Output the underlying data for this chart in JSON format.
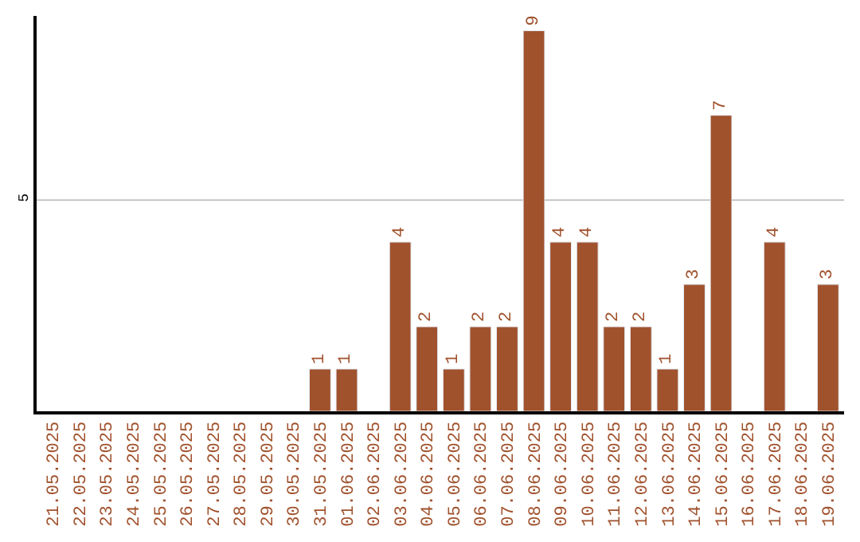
{
  "chart_data": {
    "type": "bar",
    "categories": [
      "21.05.2025",
      "22.05.2025",
      "23.05.2025",
      "24.05.2025",
      "25.05.2025",
      "26.05.2025",
      "27.05.2025",
      "28.05.2025",
      "29.05.2025",
      "30.05.2025",
      "31.05.2025",
      "01.06.2025",
      "02.06.2025",
      "03.06.2025",
      "04.06.2025",
      "05.06.2025",
      "06.06.2025",
      "07.06.2025",
      "08.06.2025",
      "09.06.2025",
      "10.06.2025",
      "11.06.2025",
      "12.06.2025",
      "13.06.2025",
      "14.06.2025",
      "15.06.2025",
      "16.06.2025",
      "17.06.2025",
      "18.06.2025",
      "19.06.2025"
    ],
    "values": [
      null,
      null,
      null,
      null,
      null,
      null,
      null,
      null,
      null,
      null,
      1,
      1,
      null,
      4,
      2,
      1,
      2,
      2,
      9,
      4,
      4,
      2,
      2,
      1,
      3,
      7,
      null,
      4,
      null,
      3
    ],
    "value_labels": [
      null,
      null,
      null,
      null,
      null,
      null,
      null,
      null,
      null,
      null,
      "1",
      "1",
      null,
      "4",
      "2",
      "1",
      "2",
      "2",
      "9",
      "4",
      "4",
      "2",
      "2",
      "1",
      "3",
      "7",
      null,
      "4",
      null,
      "3"
    ],
    "color": "#a0522d",
    "ylim": [
      0,
      9.35
    ],
    "yticks": [
      {
        "value": 0,
        "label": null
      },
      5
    ],
    "grid": "y",
    "legend": false
  }
}
